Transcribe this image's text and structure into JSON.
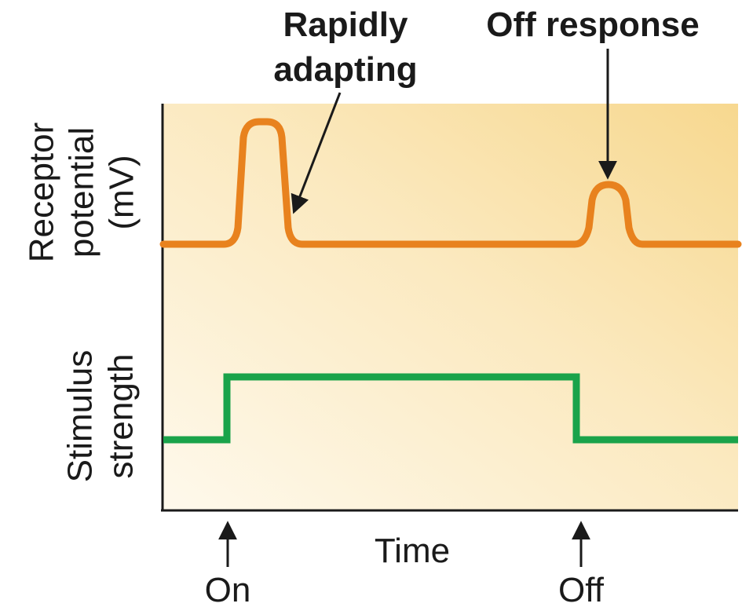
{
  "labels": {
    "rapidly_adapting_line1": "Rapidly",
    "rapidly_adapting_line2": "adapting",
    "off_response": "Off response",
    "receptor_line1": "Receptor",
    "receptor_line2": "potential",
    "receptor_line3": "(mV)",
    "stimulus_line1": "Stimulus",
    "stimulus_line2": "strength",
    "time": "Time",
    "on": "On",
    "off": "Off"
  },
  "colors": {
    "panel_light": "#fdf6e4",
    "panel_dark": "#f8dc9c",
    "receptor_trace": "#e8821e",
    "stimulus_trace": "#1aa34a",
    "axis": "#1a1a1a"
  }
}
